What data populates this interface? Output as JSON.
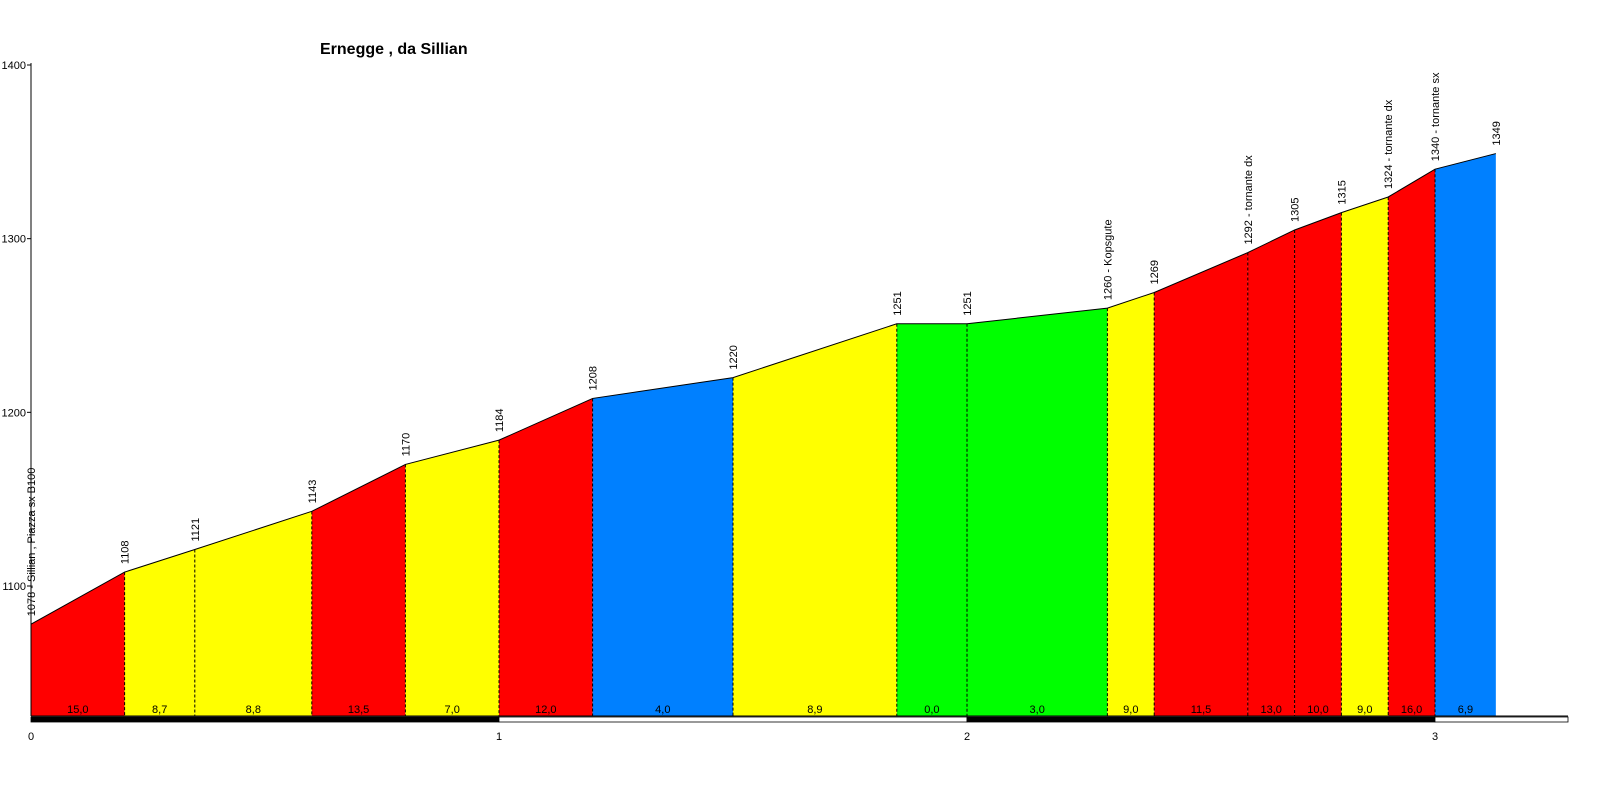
{
  "chart_data": {
    "type": "area",
    "title": "Ernegge , da Sillian",
    "xlabel": "",
    "ylabel": "",
    "xlim": [
      0,
      3.3
    ],
    "ylim": [
      1045,
      1400
    ],
    "y_ticks": [
      1100,
      1200,
      1300,
      1400
    ],
    "x_ticks": [
      0,
      1,
      2,
      3
    ],
    "points": [
      {
        "x": 0.0,
        "y": 1078,
        "label": "1078 - Sillian , Piazza sx B100"
      },
      {
        "x": 0.2,
        "y": 1108,
        "label": "1108"
      },
      {
        "x": 0.35,
        "y": 1121,
        "label": "1121"
      },
      {
        "x": 0.6,
        "y": 1143,
        "label": "1143"
      },
      {
        "x": 0.8,
        "y": 1170,
        "label": "1170"
      },
      {
        "x": 1.0,
        "y": 1184,
        "label": "1184"
      },
      {
        "x": 1.2,
        "y": 1208,
        "label": "1208"
      },
      {
        "x": 1.5,
        "y": 1220,
        "label": "1220"
      },
      {
        "x": 1.85,
        "y": 1251,
        "label": "1251"
      },
      {
        "x": 2.0,
        "y": 1251,
        "label": "1251"
      },
      {
        "x": 2.3,
        "y": 1260,
        "label": "1260 - Kopsgute"
      },
      {
        "x": 2.4,
        "y": 1269,
        "label": "1269"
      },
      {
        "x": 2.6,
        "y": 1292,
        "label": "1292 - tornante dx"
      },
      {
        "x": 2.7,
        "y": 1305,
        "label": "1305"
      },
      {
        "x": 2.8,
        "y": 1315,
        "label": "1315"
      },
      {
        "x": 2.9,
        "y": 1324,
        "label": "1324 - tornante dx"
      },
      {
        "x": 3.0,
        "y": 1340,
        "label": "1340 - tornante sx"
      },
      {
        "x": 3.13,
        "y": 1349,
        "label": "1349"
      }
    ],
    "segments": [
      {
        "gradient": "15,0",
        "color": "#ff0000"
      },
      {
        "gradient": "8,7",
        "color": "#ffff00"
      },
      {
        "gradient": "8,8",
        "color": "#ffff00"
      },
      {
        "gradient": "13,5",
        "color": "#ff0000"
      },
      {
        "gradient": "7,0",
        "color": "#ffff00"
      },
      {
        "gradient": "12,0",
        "color": "#ff0000"
      },
      {
        "gradient": "4,0",
        "color": "#0080ff"
      },
      {
        "gradient": "8,9",
        "color": "#ffff00"
      },
      {
        "gradient": "0,0",
        "color": "#00ff00"
      },
      {
        "gradient": "3,0",
        "color": "#00ff00"
      },
      {
        "gradient": "9,0",
        "color": "#ffff00"
      },
      {
        "gradient": "11,5",
        "color": "#ff0000"
      },
      {
        "gradient": "13,0",
        "color": "#ff0000"
      },
      {
        "gradient": "10,0",
        "color": "#ff0000"
      },
      {
        "gradient": "9,0",
        "color": "#ffff00"
      },
      {
        "gradient": "16,0",
        "color": "#ff0000"
      },
      {
        "gradient": "6,9",
        "color": "#0080ff"
      }
    ],
    "grid": false,
    "legend": "none"
  }
}
